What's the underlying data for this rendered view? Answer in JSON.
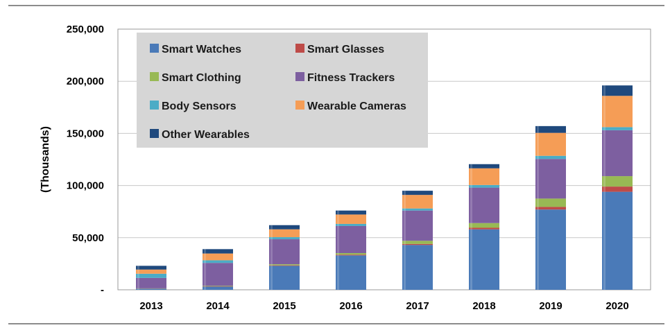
{
  "chart_data": {
    "type": "bar",
    "stacked": true,
    "categories": [
      "2013",
      "2014",
      "2015",
      "2016",
      "2017",
      "2018",
      "2019",
      "2020"
    ],
    "ylabel": "(Thousands)",
    "ylim": [
      0,
      250000
    ],
    "yticks": [
      0,
      50000,
      100000,
      150000,
      200000,
      250000
    ],
    "ytick_labels": [
      "-",
      "50,000",
      "100,000",
      "150,000",
      "200,000",
      "250,000"
    ],
    "grid": true,
    "legend_position": "top-left",
    "series": [
      {
        "name": "Smart Watches",
        "color": "#4a7ab8",
        "values": [
          1000,
          3000,
          23000,
          33000,
          43000,
          58000,
          77000,
          94000
        ]
      },
      {
        "name": "Smart Glasses",
        "color": "#be4b48",
        "values": [
          200,
          300,
          500,
          700,
          1000,
          1500,
          2500,
          5000
        ]
      },
      {
        "name": "Smart Clothing",
        "color": "#98b954",
        "values": [
          200,
          500,
          1000,
          1500,
          3000,
          4500,
          8000,
          10000
        ]
      },
      {
        "name": "Fitness Trackers",
        "color": "#7d5fa0",
        "values": [
          10000,
          22000,
          24000,
          26000,
          29000,
          34000,
          38000,
          44000
        ]
      },
      {
        "name": "Body Sensors",
        "color": "#4bacc6",
        "values": [
          4000,
          2500,
          2000,
          2000,
          2000,
          2500,
          3000,
          3000
        ]
      },
      {
        "name": "Wearable Cameras",
        "color": "#f59d56",
        "values": [
          4000,
          6500,
          7500,
          9000,
          13000,
          16000,
          22000,
          30000
        ]
      },
      {
        "name": "Other Wearables",
        "color": "#1f497d",
        "values": [
          3600,
          4200,
          4000,
          3800,
          4000,
          4000,
          6500,
          10000
        ]
      }
    ]
  }
}
